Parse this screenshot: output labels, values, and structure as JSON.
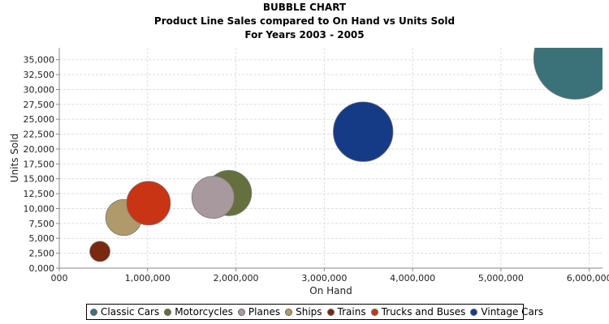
{
  "chart_data": {
    "type": "scatter",
    "title": "BUBBLE CHART",
    "subtitle": "Product Line Sales compared to On Hand vs Units Sold",
    "subtitle2": "For Years 2003 - 2005",
    "xlabel": "On Hand",
    "ylabel": "Units Sold",
    "xlim": [
      0,
      6150000
    ],
    "ylim": [
      0,
      37000
    ],
    "xticks": [
      "000",
      "1,000,000",
      "2,000,000",
      "3,000,000",
      "4,000,000",
      "5,000,000",
      "6,000,000"
    ],
    "xtick_values": [
      0,
      1000000,
      2000000,
      3000000,
      4000000,
      5000000,
      6000000
    ],
    "yticks": [
      "0,000",
      "2,500",
      "5,000",
      "7,500",
      "10,000",
      "12,500",
      "15,000",
      "17,500",
      "20,000",
      "22,500",
      "25,000",
      "27,500",
      "30,000",
      "32,500",
      "35,000"
    ],
    "ytick_values": [
      0,
      2500,
      5000,
      7500,
      10000,
      12500,
      15000,
      17500,
      20000,
      22500,
      25000,
      27500,
      30000,
      32500,
      35000
    ],
    "grid": true,
    "legend_position": "bottom",
    "series": [
      {
        "name": "Classic Cars",
        "color": "#3B7279",
        "x": 5840000,
        "y": 35300,
        "size": 100
      },
      {
        "name": "Motorcycles",
        "color": "#65703E",
        "x": 1920000,
        "y": 12600,
        "size": 30
      },
      {
        "name": "Planes",
        "color": "#A8999F",
        "x": 1740000,
        "y": 11900,
        "size": 26
      },
      {
        "name": "Ships",
        "color": "#B09A6B",
        "x": 730000,
        "y": 8500,
        "size": 19
      },
      {
        "name": "Trains",
        "color": "#7A2810",
        "x": 460000,
        "y": 2800,
        "size": 6
      },
      {
        "name": "Trucks and Buses",
        "color": "#C93414",
        "x": 1010000,
        "y": 10900,
        "size": 28
      },
      {
        "name": "Vintage Cars",
        "color": "#153B86",
        "x": 3440000,
        "y": 22900,
        "size": 52
      }
    ]
  }
}
